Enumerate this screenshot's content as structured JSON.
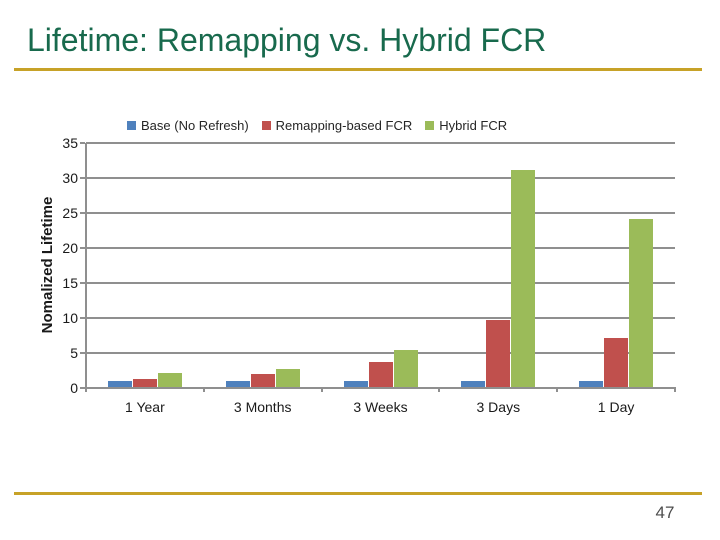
{
  "slide": {
    "title": "Lifetime: Remapping vs. Hybrid FCR",
    "title_color": "#186a4d",
    "accent_line_color": "#c7a228",
    "page_number": "47"
  },
  "chart_data": {
    "type": "bar",
    "title": "",
    "categories": [
      "1 Year",
      "3 Months",
      "3 Weeks",
      "3 Days",
      "1 Day"
    ],
    "series": [
      {
        "name": "Base (No Refresh)",
        "color": "#4f81bd",
        "values": [
          0.8,
          0.8,
          0.8,
          0.8,
          0.8
        ]
      },
      {
        "name": "Remapping-based FCR",
        "color": "#c0504d",
        "values": [
          1.2,
          1.8,
          3.5,
          9.6,
          7.0
        ]
      },
      {
        "name": "Hybrid FCR",
        "color": "#9bbb59",
        "values": [
          2.0,
          2.5,
          5.3,
          31.0,
          24.0
        ]
      }
    ],
    "xlabel": "",
    "ylabel": "Nomalized Lifetime",
    "ylim": [
      0,
      35
    ],
    "yticks": [
      0,
      5,
      10,
      15,
      20,
      25,
      30,
      35
    ],
    "grid": true,
    "grid_color": "#8f8f8f",
    "legend_position": "top"
  }
}
